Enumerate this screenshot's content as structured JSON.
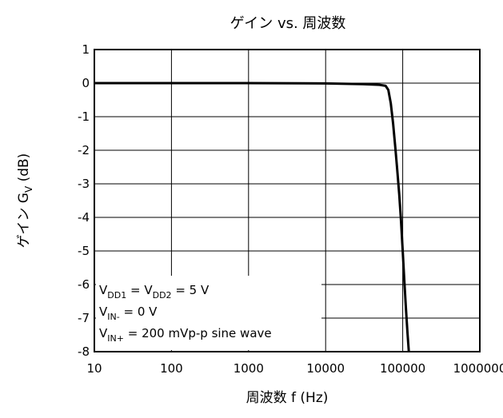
{
  "chart_data": {
    "type": "line",
    "title": "ゲイン vs. 周波数",
    "xlabel": "周波数 f (Hz)",
    "ylabel": {
      "main": "ゲイン G",
      "sub": "V",
      "unit": " (dB)"
    },
    "x_scale": "log",
    "xlim": [
      10,
      1000000
    ],
    "ylim": [
      -8,
      1
    ],
    "x_ticks": [
      10,
      100,
      1000,
      10000,
      100000,
      1000000
    ],
    "x_tick_labels": [
      "10",
      "100",
      "1000",
      "10000",
      "100000",
      "1000000"
    ],
    "y_ticks": [
      1,
      0,
      -1,
      -2,
      -3,
      -4,
      -5,
      -6,
      -7,
      -8
    ],
    "y_tick_labels": [
      "1",
      "0",
      "-1",
      "-2",
      "-3",
      "-4",
      "-5",
      "-6",
      "-7",
      "-8"
    ],
    "grid": true,
    "series": [
      {
        "color": "#000000",
        "points": [
          [
            10,
            0
          ],
          [
            100,
            0
          ],
          [
            1000,
            0
          ],
          [
            10000,
            -0.01
          ],
          [
            30000,
            -0.03
          ],
          [
            50000,
            -0.05
          ],
          [
            60000,
            -0.08
          ],
          [
            65000,
            -0.2
          ],
          [
            70000,
            -0.6
          ],
          [
            75000,
            -1.2
          ],
          [
            80000,
            -1.9
          ],
          [
            85000,
            -2.6
          ],
          [
            90000,
            -3.3
          ],
          [
            95000,
            -4.1
          ],
          [
            100000,
            -5.0
          ],
          [
            105000,
            -5.9
          ],
          [
            110000,
            -6.7
          ],
          [
            115000,
            -7.4
          ],
          [
            120000,
            -8.0
          ]
        ]
      }
    ],
    "annotation": [
      {
        "parts": [
          {
            "t": "V"
          },
          {
            "t": "DD1",
            "sub": true
          },
          {
            "t": " = V"
          },
          {
            "t": "DD2",
            "sub": true
          },
          {
            "t": " = 5 V"
          }
        ]
      },
      {
        "parts": [
          {
            "t": "V"
          },
          {
            "t": "IN-",
            "sub": true
          },
          {
            "t": " = 0 V"
          }
        ]
      },
      {
        "parts": [
          {
            "t": "V"
          },
          {
            "t": "IN+",
            "sub": true
          },
          {
            "t": " = 200 mVp-p sine wave"
          }
        ]
      }
    ]
  }
}
